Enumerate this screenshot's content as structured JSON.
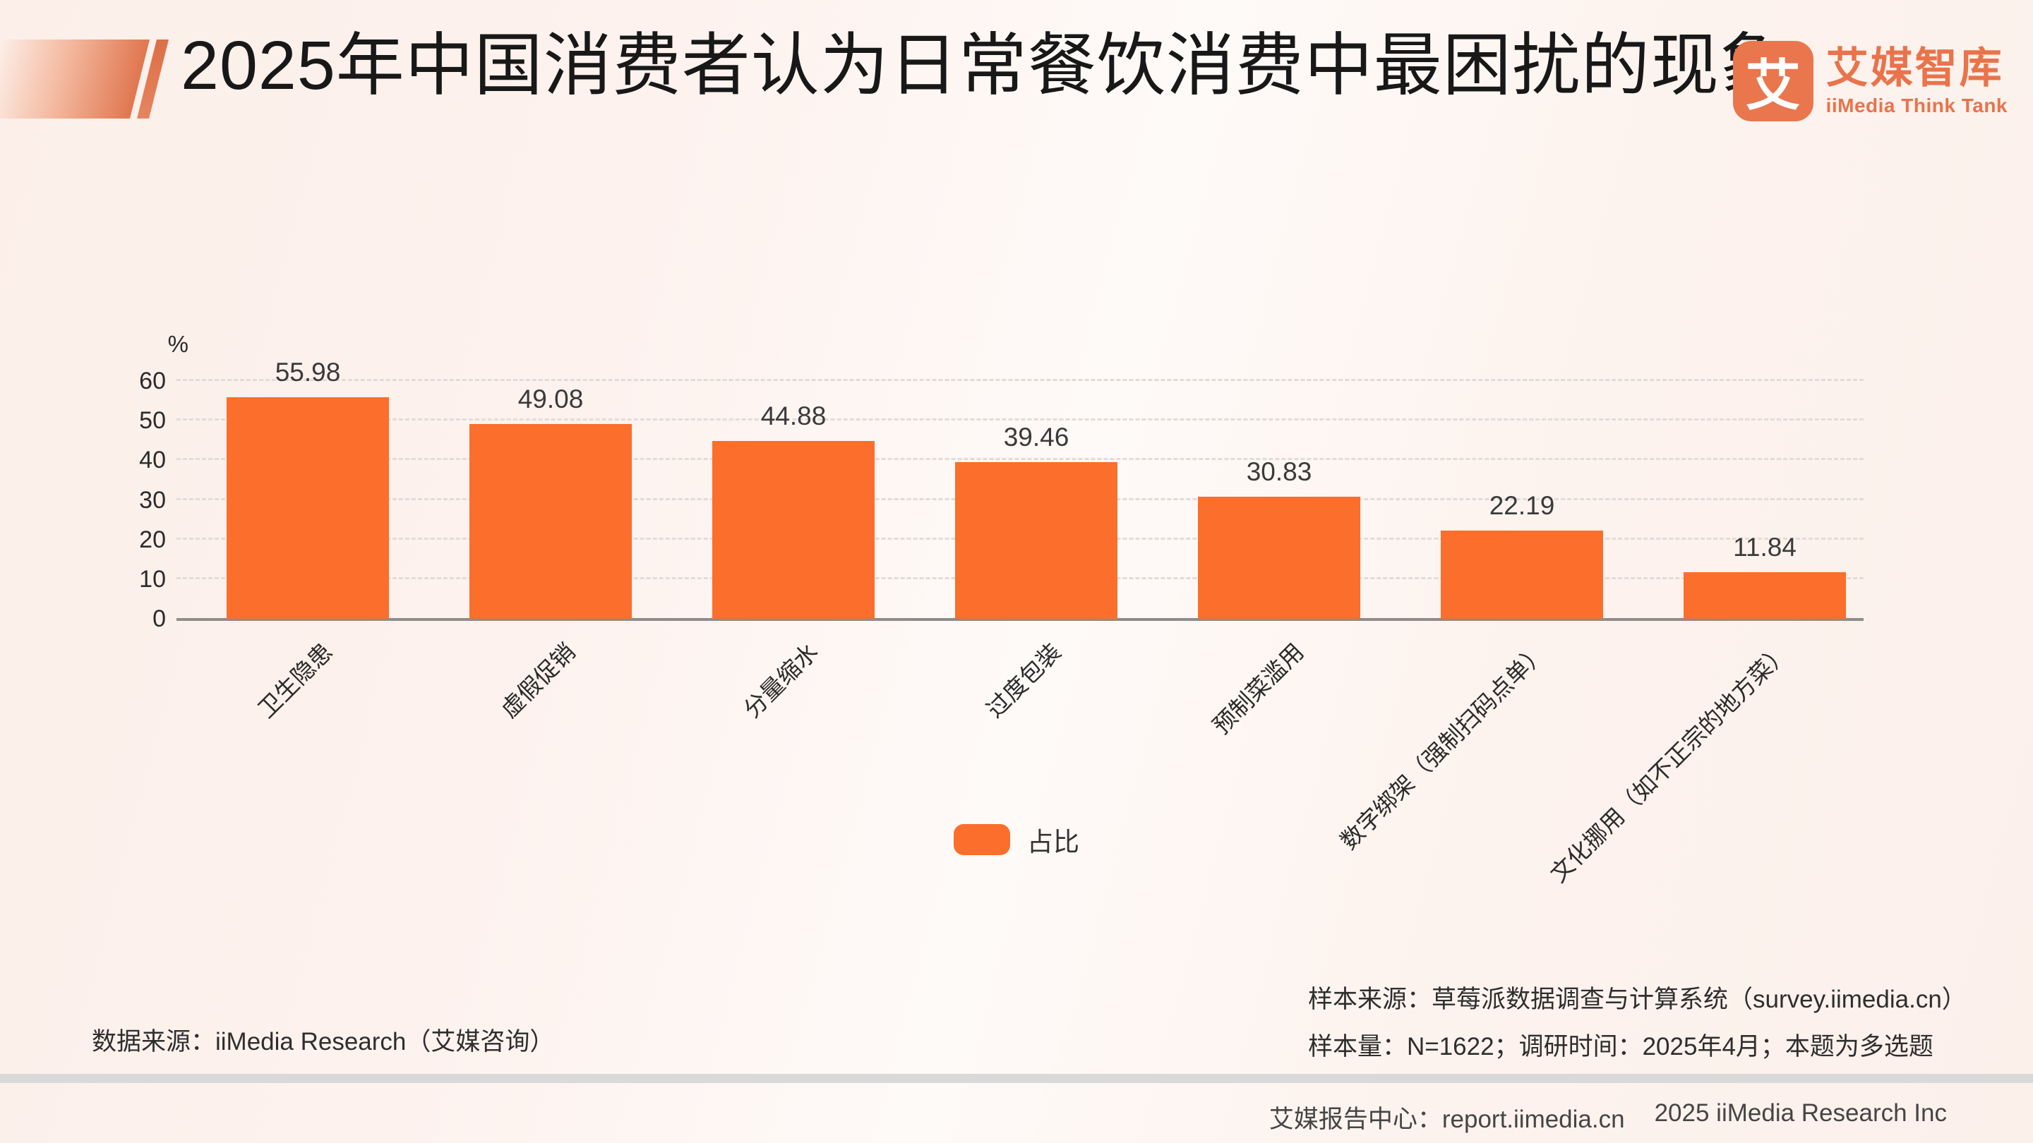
{
  "header": {
    "title": "2025年中国消费者认为日常餐饮消费中最困扰的现象",
    "logo": {
      "icon_char": "艾",
      "name_cn": "艾媒智库",
      "name_en": "iiMedia Think Tank"
    }
  },
  "chart_data": {
    "type": "bar",
    "title": "2025年中国消费者认为日常餐饮消费中最困扰的现象",
    "unit_label": "%",
    "categories": [
      "卫生隐患",
      "虚假促销",
      "分量缩水",
      "过度包装",
      "预制菜滥用",
      "数字绑架（强制扫码点单）",
      "文化挪用（如不正宗的地方菜）"
    ],
    "values": [
      55.98,
      49.08,
      44.88,
      39.46,
      30.83,
      22.19,
      11.84
    ],
    "series_name": "占比",
    "ylim": [
      0,
      60
    ],
    "yticks": [
      0,
      10,
      20,
      30,
      40,
      50,
      60
    ],
    "grid": true,
    "grid_style": "dashed",
    "legend_position": "bottom",
    "bar_color": "#fb6e2c",
    "xlabel": "",
    "ylabel": "%"
  },
  "legend": {
    "label": "占比"
  },
  "notes": {
    "data_source": "数据来源：iiMedia Research（艾媒咨询）",
    "sample_source": "样本来源：草莓派数据调查与计算系统（survey.iimedia.cn）",
    "sample_info": "样本量：N=1622；调研时间：2025年4月；本题为多选题"
  },
  "footer": {
    "report_center": "艾媒报告中心：report.iimedia.cn",
    "copyright": "2025 iiMedia Research Inc"
  }
}
